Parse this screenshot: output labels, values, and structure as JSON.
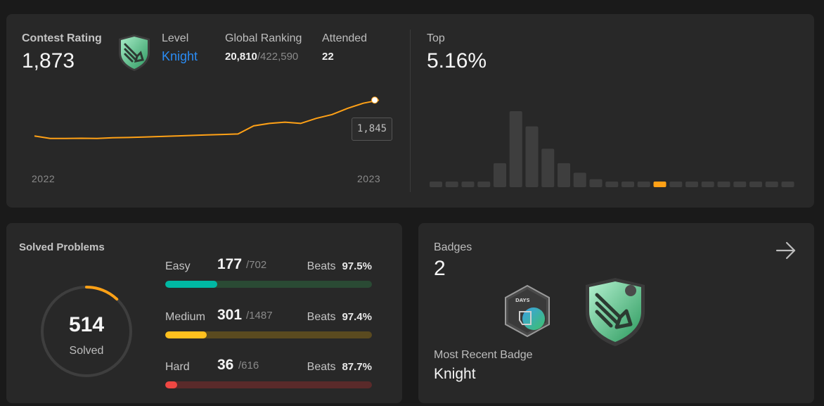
{
  "contest": {
    "rating_label": "Contest Rating",
    "rating_value": "1,873",
    "level_label": "Level",
    "level_value": "Knight",
    "global_ranking_label": "Global Ranking",
    "global_rank": "20,810",
    "global_total": "/422,590",
    "attended_label": "Attended",
    "attended_value": "22",
    "tooltip_value": "1,845",
    "year_start": "2022",
    "year_end": "2023",
    "top_label": "Top",
    "top_value": "5.16%"
  },
  "chart_data": [
    {
      "type": "line",
      "title": "Contest Rating",
      "x": [
        0,
        1,
        2,
        3,
        4,
        5,
        6,
        7,
        8,
        9,
        10,
        11,
        12,
        13,
        14,
        15,
        16,
        17,
        18,
        19,
        20,
        21,
        22
      ],
      "values": [
        1560,
        1540,
        1541,
        1542,
        1540,
        1546,
        1548,
        1552,
        1556,
        1560,
        1564,
        1568,
        1572,
        1576,
        1640,
        1660,
        1670,
        1660,
        1700,
        1730,
        1780,
        1820,
        1845
      ],
      "highlight_value": 1845,
      "x_tick_labels": [
        "2022",
        "2023"
      ],
      "color": "#ffa116"
    },
    {
      "type": "bar",
      "title": "Top 5.16%",
      "values": [
        2,
        2,
        2,
        5,
        30,
        95,
        76,
        48,
        30,
        18,
        10,
        7,
        5,
        4,
        4,
        3,
        2,
        2,
        2,
        2,
        2,
        2,
        2
      ],
      "highlight_index": 14,
      "colors": {
        "bar": "#3e3e3e",
        "highlight": "#ffa116"
      }
    }
  ],
  "solved": {
    "title": "Solved Problems",
    "total_solved": "514",
    "solved_label": "Solved",
    "ring_fraction": 0.12,
    "rows": [
      {
        "label": "Easy",
        "count": "177",
        "total": "/702",
        "beats_label": "Beats",
        "beats_value": "97.5%",
        "progress": 0.252,
        "color": "#00b8a3",
        "track": "#2a4a34"
      },
      {
        "label": "Medium",
        "count": "301",
        "total": "/1487",
        "beats_label": "Beats",
        "beats_value": "97.4%",
        "progress": 0.202,
        "color": "#ffc01e",
        "track": "#5a4a1f"
      },
      {
        "label": "Hard",
        "count": "36",
        "total": "/616",
        "beats_label": "Beats",
        "beats_value": "87.7%",
        "progress": 0.058,
        "color": "#ef4743",
        "track": "#5a2a2a"
      }
    ]
  },
  "badges": {
    "title": "Badges",
    "count": "2",
    "recent_label": "Most Recent Badge",
    "recent_value": "Knight",
    "days_badge_text": "DAYS"
  },
  "colors": {
    "accent": "#ffa116",
    "level": "#2a8cf4",
    "card": "#282828",
    "background": "#1a1a1a"
  }
}
